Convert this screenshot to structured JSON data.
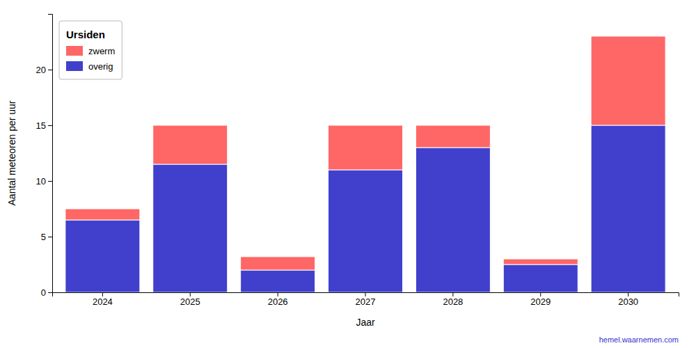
{
  "chart_data": {
    "type": "bar",
    "stacked": true,
    "title": "Ursiden",
    "xlabel": "Jaar",
    "ylabel": "Aantal meteoren per uur",
    "categories": [
      "2024",
      "2025",
      "2026",
      "2027",
      "2028",
      "2029",
      "2030"
    ],
    "series": [
      {
        "name": "overig",
        "color": "#4040cc",
        "values": [
          6.5,
          11.5,
          2.0,
          11.0,
          13.0,
          2.5,
          15.0
        ]
      },
      {
        "name": "zwerm",
        "color": "#ff6666",
        "values": [
          1.0,
          3.5,
          1.2,
          4.0,
          2.0,
          0.5,
          8.0
        ]
      }
    ],
    "ylim": [
      0,
      25
    ],
    "yticks": [
      0,
      5,
      10,
      15,
      20
    ],
    "grid": false,
    "legend": "upper left",
    "annotations": [
      {
        "text": "hemel.waarnemen.com",
        "color": "#3333cc"
      }
    ]
  }
}
